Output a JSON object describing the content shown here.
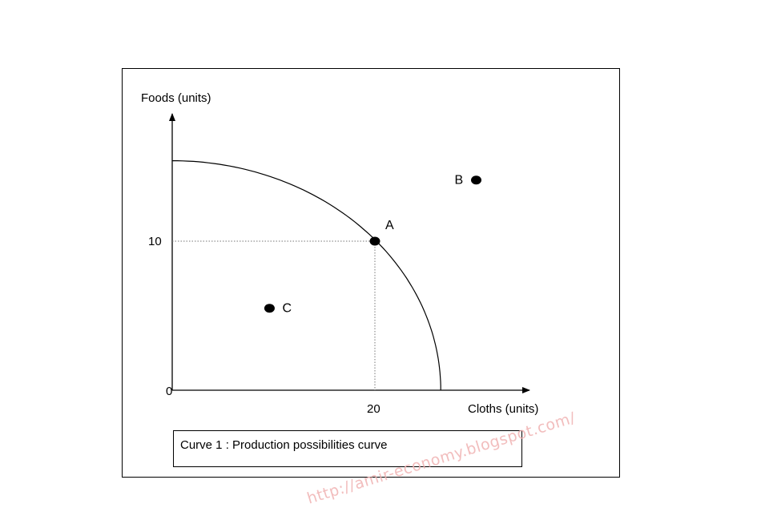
{
  "diagram": {
    "y_axis_label": "Foods (units)",
    "x_axis_label": "Cloths (units)",
    "origin_label": "0",
    "y_tick_label": "10",
    "x_tick_label": "20",
    "caption": "Curve 1 : Production possibilities  curve",
    "watermark": "http://amir-economy.blogspot.com/"
  },
  "chart_data": {
    "type": "scatter",
    "xlabel": "Cloths (units)",
    "ylabel": "Foods (units)",
    "x_ticks": [
      0,
      20
    ],
    "y_ticks": [
      0,
      10
    ],
    "xlim": [
      0,
      35
    ],
    "ylim": [
      0,
      18.5
    ],
    "curve": {
      "name": "Curve 1 : Production possibilities  curve",
      "x_intercept": 26.5,
      "y_intercept": 15.4
    },
    "points": [
      {
        "label": "A",
        "x": 20,
        "y": 10
      },
      {
        "label": "B",
        "x": 30,
        "y": 14.1
      },
      {
        "label": "C",
        "x": 9.6,
        "y": 5.5
      }
    ],
    "reference_lines": {
      "from_point": "A",
      "style": "dotted"
    },
    "grid": false
  }
}
